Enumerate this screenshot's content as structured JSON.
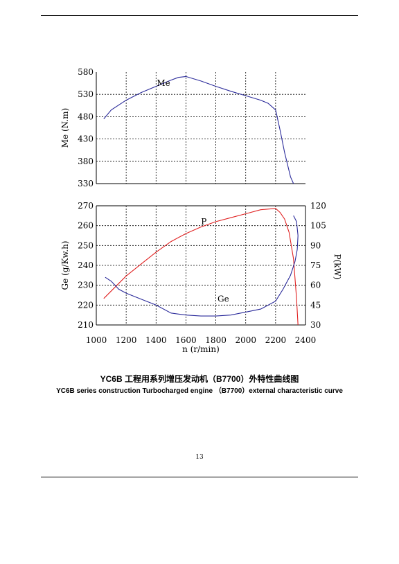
{
  "caption": {
    "cn": "YC6B 工程用系列增压发动机（B7700）外特性曲线图",
    "en": "YC6B series construction Turbocharged engine （B7700）external characteristic curve"
  },
  "page_number": "13",
  "chart_data": [
    {
      "type": "line",
      "xlim": [
        1000,
        2400
      ],
      "ylim": [
        330,
        580
      ],
      "yticks": [
        330,
        380,
        430,
        480,
        530,
        580
      ],
      "ylabel": "Me (N.m)",
      "grid": true,
      "annotations": [
        {
          "text": "Me",
          "x": 1450,
          "y": 555
        }
      ],
      "series": [
        {
          "name": "Me",
          "color": "#2a2a9a",
          "x": [
            1050,
            1100,
            1200,
            1300,
            1400,
            1500,
            1550,
            1600,
            1700,
            1800,
            1900,
            2000,
            2100,
            2150,
            2200,
            2230,
            2260,
            2300,
            2320
          ],
          "y": [
            475,
            495,
            517,
            534,
            548,
            562,
            568,
            570,
            560,
            548,
            537,
            527,
            517,
            510,
            495,
            450,
            400,
            345,
            330
          ]
        }
      ]
    },
    {
      "type": "line",
      "xlim": [
        1000,
        2400
      ],
      "xticks": [
        1000,
        1200,
        1400,
        1600,
        1800,
        2000,
        2200,
        2400
      ],
      "xlabel": "n (r/min)",
      "ylim": [
        210,
        270
      ],
      "yticks": [
        210,
        220,
        230,
        240,
        250,
        260,
        270
      ],
      "ylabel": "Ge (g/Kw.h)",
      "y2lim": [
        30,
        120
      ],
      "y2ticks": [
        30,
        45,
        60,
        75,
        90,
        105,
        120
      ],
      "y2label": "P(kW)",
      "grid": true,
      "annotations": [
        {
          "text": "P",
          "x": 1720,
          "y": 262
        },
        {
          "text": "Ge",
          "x": 1850,
          "y": 223
        }
      ],
      "series": [
        {
          "name": "P",
          "axis": "right",
          "color": "#e02020",
          "x": [
            1050,
            1200,
            1300,
            1400,
            1500,
            1600,
            1700,
            1800,
            1900,
            2000,
            2100,
            2200,
            2230,
            2260,
            2290,
            2320,
            2340,
            2350
          ],
          "y": [
            50,
            67,
            76,
            85,
            93,
            99,
            104,
            108,
            111,
            114,
            117,
            118,
            115,
            110,
            100,
            80,
            50,
            30
          ]
        },
        {
          "name": "Ge",
          "axis": "left",
          "color": "#2a2a9a",
          "x": [
            1060,
            1100,
            1150,
            1200,
            1300,
            1400,
            1500,
            1600,
            1700,
            1800,
            1900,
            2000,
            2100,
            2200,
            2250,
            2300,
            2330,
            2345,
            2350,
            2340,
            2320
          ],
          "y": [
            234,
            232,
            228,
            226,
            223,
            220,
            216,
            215,
            214.5,
            214.5,
            215,
            216.5,
            218,
            222,
            228,
            235,
            242,
            248,
            255,
            262,
            265
          ]
        }
      ]
    }
  ]
}
